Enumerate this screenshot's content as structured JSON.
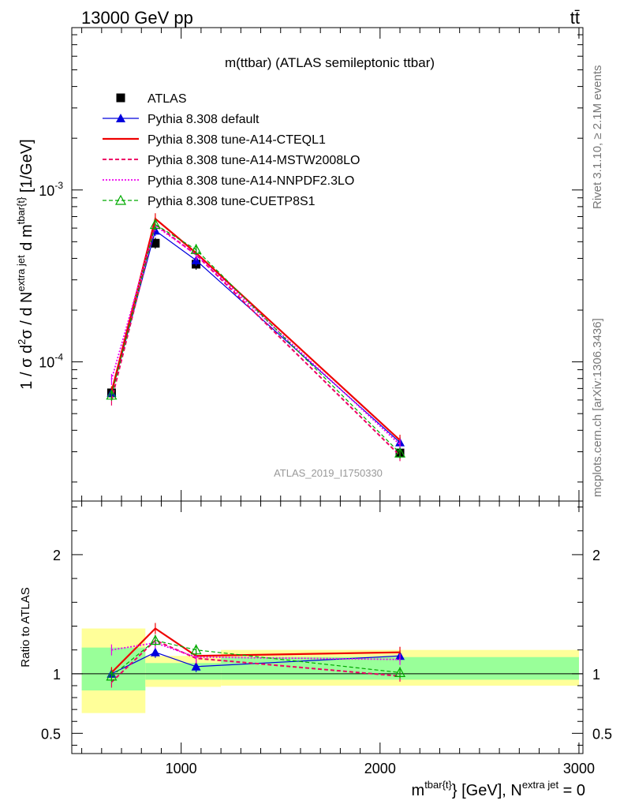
{
  "header": {
    "left": "13000 GeV pp",
    "right": "tt̄"
  },
  "side": {
    "rivet": "Rivet 3.1.10, ≥ 2.1M events",
    "mcplots": "mcplots.cern.ch [arXiv:1306.3436]"
  },
  "chart_data": [
    {
      "type": "line",
      "title": "m(ttbar) (ATLAS semileptonic ttbar)",
      "analysis_label": "ATLAS_2019_I1750330",
      "ylabel": "1 / σ d²σ / d N^{extra jet} d m^{tbar{t}} [1/GeV]",
      "yscale": "log",
      "ylim": [
        1.55e-05,
        0.0088
      ],
      "xlim": [
        450,
        3020
      ],
      "y_tick_labels": [
        "10^-4",
        "10^-3"
      ],
      "legend": {
        "placement": "top-left",
        "entries": [
          "ATLAS",
          "Pythia 8.308 default",
          "Pythia 8.308 tune-A14-CTEQL1",
          "Pythia 8.308 tune-A14-MSTW2008LO",
          "Pythia 8.308 tune-A14-NNPDF2.3LO",
          "Pythia 8.308 tune-CUETP8S1"
        ]
      },
      "x": [
        650,
        870,
        1075,
        2100
      ],
      "series": [
        {
          "name": "ATLAS",
          "color": "#000000",
          "values": [
            6.6e-05,
            0.00049,
            0.00037,
            2.95e-05
          ]
        },
        {
          "name": "Pythia 8.308 default",
          "color": "#0000dd",
          "values": [
            6.6e-05,
            0.00058,
            0.00039,
            3.4e-05
          ]
        },
        {
          "name": "Pythia 8.308 tune-A14-CTEQL1",
          "color": "#ee0000",
          "values": [
            6.7e-05,
            0.00068,
            0.00043,
            3.5e-05
          ]
        },
        {
          "name": "Pythia 8.308 tune-A14-MSTW2008LO",
          "color": "#ee0066",
          "values": [
            6e-05,
            0.00063,
            0.00042,
            2.85e-05
          ]
        },
        {
          "name": "Pythia 8.308 tune-A14-NNPDF2.3LO",
          "color": "#ee00ee",
          "values": [
            7.9e-05,
            0.00062,
            0.00042,
            3.3e-05
          ]
        },
        {
          "name": "Pythia 8.308 tune-CUETP8S1",
          "color": "#00aa00",
          "values": [
            6.4e-05,
            0.00063,
            0.00045,
            2.95e-05
          ]
        }
      ]
    },
    {
      "type": "line",
      "ylabel": "Ratio to ATLAS",
      "xlabel": "m^{tbar{t}} [GeV], N^{extra jet} = 0",
      "ylim": [
        0.33,
        2.45
      ],
      "xlim": [
        450,
        3020
      ],
      "y_tick_labels": [
        "0.5",
        "1",
        "2"
      ],
      "x_tick_labels": [
        "1000",
        "2000",
        "3000"
      ],
      "x": [
        650,
        870,
        1075,
        2100
      ],
      "uncertainty_bands": {
        "bins": [
          [
            500,
            820
          ],
          [
            820,
            1200
          ],
          [
            1200,
            3000
          ]
        ],
        "inner": [
          [
            0.86,
            1.22
          ],
          [
            0.95,
            1.09
          ],
          [
            0.95,
            1.14
          ]
        ],
        "outer": [
          [
            0.67,
            1.38
          ],
          [
            0.89,
            1.15
          ],
          [
            0.9,
            1.2
          ]
        ]
      },
      "series": [
        {
          "name": "Pythia 8.308 default",
          "color": "#0000dd",
          "values": [
            1.0,
            1.18,
            1.06,
            1.15
          ]
        },
        {
          "name": "Pythia 8.308 tune-A14-CTEQL1",
          "color": "#ee0000",
          "values": [
            1.01,
            1.38,
            1.15,
            1.18
          ]
        },
        {
          "name": "Pythia 8.308 tune-A14-MSTW2008LO",
          "color": "#ee0066",
          "values": [
            0.93,
            1.28,
            1.13,
            0.98
          ]
        },
        {
          "name": "Pythia 8.308 tune-A14-NNPDF2.3LO",
          "color": "#ee00ee",
          "values": [
            1.2,
            1.26,
            1.14,
            1.12
          ]
        },
        {
          "name": "Pythia 8.308 tune-CUETP8S1",
          "color": "#00aa00",
          "values": [
            0.98,
            1.28,
            1.2,
            1.01
          ]
        }
      ]
    }
  ]
}
